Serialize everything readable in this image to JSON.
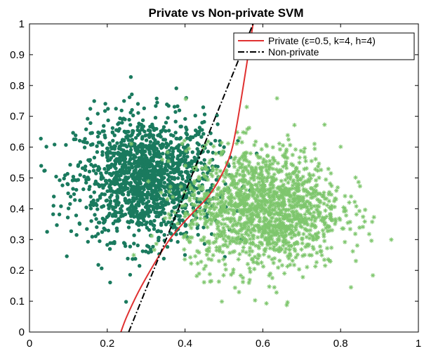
{
  "chart_data": {
    "type": "scatter",
    "title": "Private vs Non-private SVM",
    "xlabel": "",
    "ylabel": "",
    "xlim": [
      0,
      1
    ],
    "ylim": [
      0,
      1
    ],
    "xticks": [
      "0",
      "0.2",
      "0.4",
      "0.6",
      "0.8",
      "1"
    ],
    "yticks": [
      "0",
      "0.1",
      "0.2",
      "0.3",
      "0.4",
      "0.5",
      "0.6",
      "0.7",
      "0.8",
      "0.9",
      "1"
    ],
    "grid": false,
    "legend_position": "top-right",
    "series": [
      {
        "kind": "scatter",
        "marker": "circle",
        "color": "#1a7a5e",
        "cluster_center": [
          0.3,
          0.5
        ],
        "spread": [
          0.09,
          0.1
        ],
        "count": 1500
      },
      {
        "kind": "scatter",
        "marker": "asterisk",
        "color": "#7ec66d",
        "cluster_center": [
          0.6,
          0.4
        ],
        "spread": [
          0.1,
          0.1
        ],
        "count": 1500
      },
      {
        "kind": "line",
        "name": "Private (ε=0.5, k=4, h=4)",
        "color": "#e03030",
        "style": "solid",
        "x": [
          0.235,
          0.25,
          0.28,
          0.32,
          0.36,
          0.4,
          0.43,
          0.46,
          0.49,
          0.515,
          0.53,
          0.55,
          0.565,
          0.575
        ],
        "y": [
          0.0,
          0.05,
          0.13,
          0.22,
          0.3,
          0.36,
          0.4,
          0.44,
          0.5,
          0.57,
          0.65,
          0.8,
          0.92,
          1.0
        ]
      },
      {
        "kind": "line",
        "name": "Non-private",
        "color": "#000000",
        "style": "dash-dot",
        "x": [
          0.255,
          0.575
        ],
        "y": [
          0.0,
          1.0
        ]
      }
    ]
  }
}
